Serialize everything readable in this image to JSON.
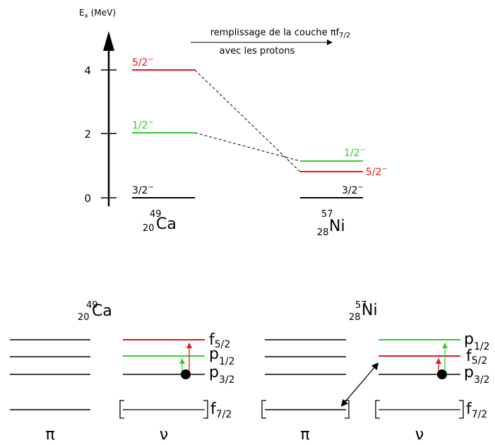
{
  "colors": {
    "red": "#e8141b",
    "green": "#33cc33",
    "black": "#000000"
  },
  "top": {
    "axis": {
      "label": "E",
      "label_sub": "x",
      "label_unit": " (MeV)",
      "ticks": [
        "4",
        "2",
        "0"
      ]
    },
    "arrow_text_line1_a": "remplissage de la couche ",
    "arrow_text_line1_pi": "π",
    "arrow_text_line1_f": "f",
    "arrow_text_line1_sub": "7/2",
    "arrow_text_line2": "avec les protons",
    "ca": {
      "mass": "49",
      "z": "20",
      "symbol": "Ca",
      "levels": [
        "5/2",
        "1/2",
        "3/2"
      ],
      "parity": "−"
    },
    "ni": {
      "mass": "57",
      "z": "28",
      "symbol": "Ni",
      "levels": [
        "1/2",
        "5/2",
        "3/2"
      ],
      "parity": "−"
    }
  },
  "bottom": {
    "ca": {
      "mass": "49",
      "z": "20",
      "symbol": "Ca"
    },
    "ni": {
      "mass": "57",
      "z": "28",
      "symbol": "Ni"
    },
    "ca_orbitals": [
      {
        "letter": "f",
        "sub": "5/2"
      },
      {
        "letter": "p",
        "sub": "1/2"
      },
      {
        "letter": "p",
        "sub": "3/2"
      },
      {
        "letter": "f",
        "sub": "7/2"
      }
    ],
    "ni_orbitals": [
      {
        "letter": "p",
        "sub": "1/2"
      },
      {
        "letter": "f",
        "sub": "5/2"
      },
      {
        "letter": "p",
        "sub": "3/2"
      },
      {
        "letter": "f",
        "sub": "7/2"
      }
    ],
    "pi": "π",
    "nu": "ν"
  }
}
